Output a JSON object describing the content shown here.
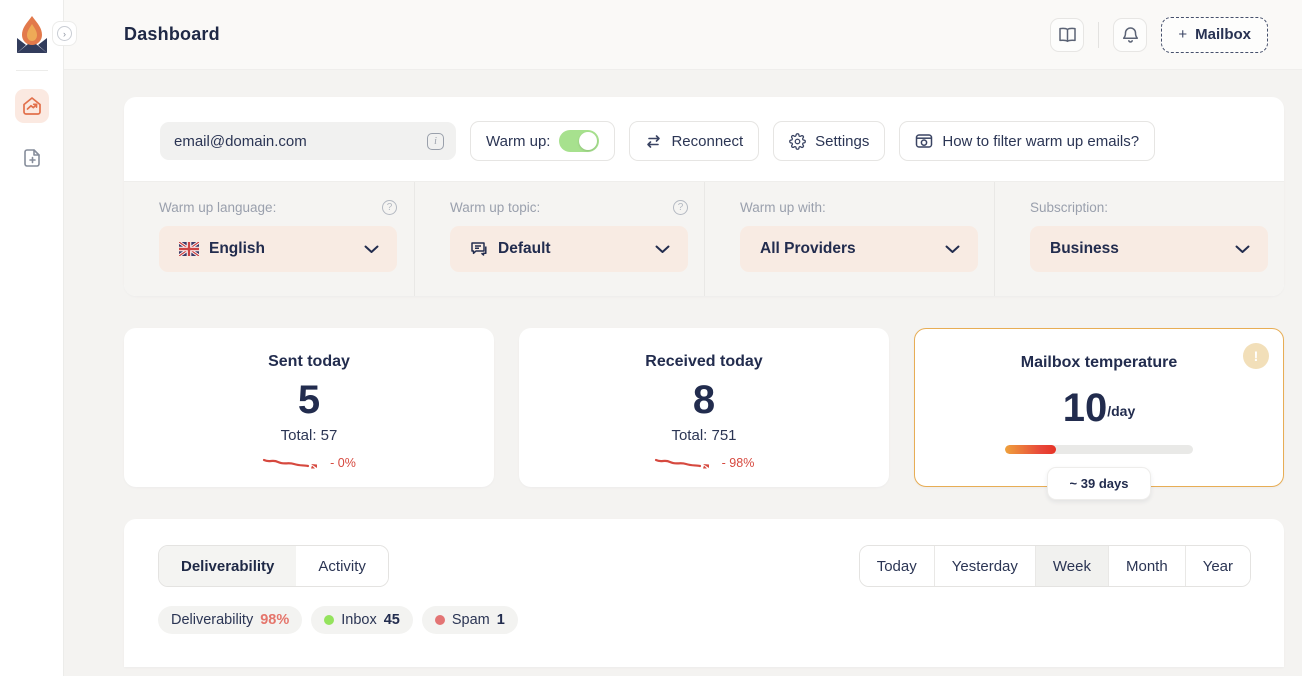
{
  "colors": {
    "accent_orange": "#e2704b",
    "navy_text": "#222c4e",
    "toggle_green": "#a7e18e",
    "trend_red": "#d6493f",
    "temp_border": "#e7ad55",
    "inbox_dot_green": "#94e35d",
    "spam_dot_red": "#e37474",
    "deliverability_pct_color": "#e5756b"
  },
  "sidebar": {
    "logo_name": "flame-mail-logo",
    "items": [
      {
        "name": "dashboard",
        "icon": "home-trend-icon",
        "active": true
      },
      {
        "name": "add-file",
        "icon": "file-plus-icon",
        "active": false
      }
    ]
  },
  "header": {
    "title": "Dashboard",
    "icons": [
      "book-icon",
      "bell-icon"
    ],
    "mailbox_button": {
      "plus": "+",
      "label": "Mailbox"
    }
  },
  "mailbox_panel": {
    "email": "email@domain.com",
    "warmup": {
      "label": "Warm up:",
      "state": "on"
    },
    "reconnect_label": "Reconnect",
    "settings_label": "Settings",
    "filter_help_label": "How to filter warm up emails?",
    "selects": [
      {
        "label": "Warm up language:",
        "value": "English",
        "has_help": true,
        "icon": "uk-flag-icon"
      },
      {
        "label": "Warm up topic:",
        "value": "Default",
        "has_help": true,
        "icon": "chat-icon"
      },
      {
        "label": "Warm up with:",
        "value": "All Providers",
        "has_help": false,
        "icon": null
      },
      {
        "label": "Subscription:",
        "value": "Business",
        "has_help": false,
        "icon": null
      }
    ]
  },
  "stats": {
    "cards": [
      {
        "title": "Sent today",
        "value": "5",
        "total": "Total: 57",
        "trend": "- 0%"
      },
      {
        "title": "Received today",
        "value": "8",
        "total": "Total: 751",
        "trend": "- 98%"
      }
    ],
    "temperature": {
      "title": "Mailbox temperature",
      "value": "10",
      "unit": "/day",
      "progress_pct": 27,
      "days_label": "~ 39 days",
      "alert_glyph": "!"
    }
  },
  "chart_panel": {
    "tabs": [
      {
        "label": "Deliverability",
        "active": true
      },
      {
        "label": "Activity",
        "active": false
      }
    ],
    "ranges": [
      {
        "label": "Today",
        "active": false
      },
      {
        "label": "Yesterday",
        "active": false
      },
      {
        "label": "Week",
        "active": true
      },
      {
        "label": "Month",
        "active": false
      },
      {
        "label": "Year",
        "active": false
      }
    ],
    "legend": [
      {
        "label": "Deliverability",
        "value": "98%"
      },
      {
        "label": "Inbox",
        "value": "45"
      },
      {
        "label": "Spam",
        "value": "1"
      }
    ]
  }
}
